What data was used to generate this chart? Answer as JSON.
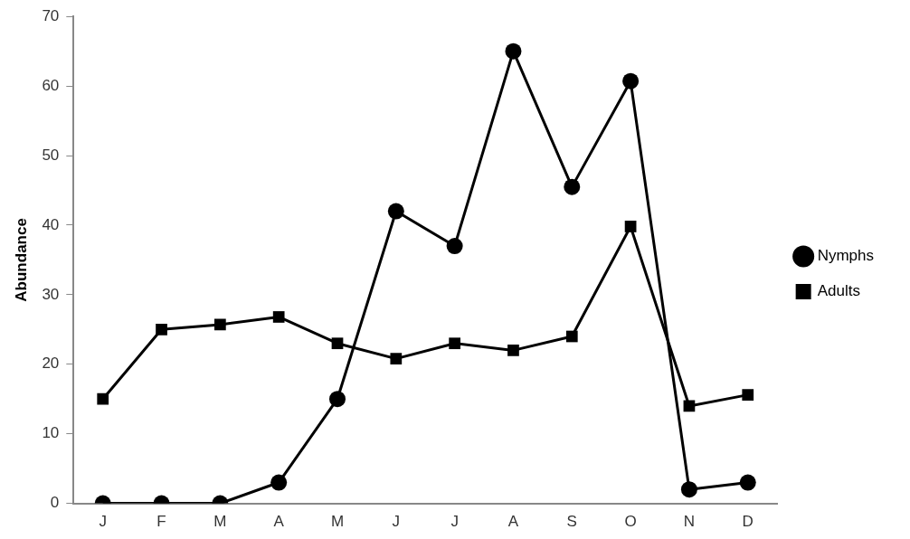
{
  "chart_data": {
    "type": "line",
    "ylabel": "Abundance",
    "categories": [
      "J",
      "F",
      "M",
      "A",
      "M",
      "J",
      "J",
      "A",
      "S",
      "O",
      "N",
      "D"
    ],
    "series": [
      {
        "name": "Nymphs",
        "color": "#000000",
        "marker": "circle",
        "values": [
          0,
          0,
          0,
          3,
          15,
          42,
          37,
          65,
          45.5,
          60.7,
          2,
          3
        ]
      },
      {
        "name": "Adults",
        "color": "#000000",
        "marker": "square",
        "values": [
          15,
          25,
          25.7,
          26.8,
          23,
          20.8,
          23,
          22,
          24,
          39.8,
          14,
          15.6
        ]
      }
    ],
    "ylim": [
      0,
      70
    ],
    "yticks": [
      0,
      10,
      20,
      30,
      40,
      50,
      60,
      70
    ],
    "grid": false,
    "legend": "right",
    "line_style": "solid"
  }
}
